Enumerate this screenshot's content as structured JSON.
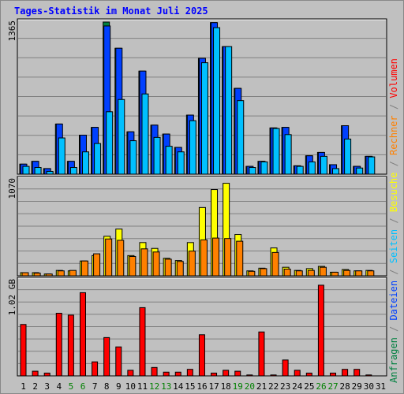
{
  "title": "Tages-Statistik im Monat Juli 2025",
  "right_legend": [
    {
      "text": "Anfragen",
      "color": "#008040"
    },
    {
      "text": " / ",
      "color": "#808080"
    },
    {
      "text": "Dateien",
      "color": "#0040ff"
    },
    {
      "text": " / ",
      "color": "#808080"
    },
    {
      "text": "Seiten",
      "color": "#00c0ff"
    },
    {
      "text": " / ",
      "color": "#808080"
    },
    {
      "text": "Besuche",
      "color": "#ffff00"
    },
    {
      "text": " / ",
      "color": "#808080"
    },
    {
      "text": "Rechner",
      "color": "#ff8000"
    },
    {
      "text": " / ",
      "color": "#808080"
    },
    {
      "text": "Volumen",
      "color": "#ff0000"
    }
  ],
  "chart_data": [
    {
      "type": "bar",
      "panel": "top",
      "ymax_label": "1365",
      "ylim": [
        0,
        1365
      ],
      "categories": [
        "1",
        "2",
        "3",
        "4",
        "5",
        "6",
        "7",
        "8",
        "9",
        "10",
        "11",
        "12",
        "13",
        "14",
        "15",
        "16",
        "17",
        "18",
        "19",
        "20",
        "21",
        "22",
        "23",
        "24",
        "25",
        "26",
        "27",
        "28",
        "29",
        "30",
        "31"
      ],
      "weekend_days": [
        5,
        6,
        12,
        13,
        19,
        20,
        26,
        27
      ],
      "series": [
        {
          "name": "Anfragen",
          "color": "#008040",
          "values": [
            90,
            115,
            50,
            450,
            115,
            350,
            420,
            1370,
            1130,
            380,
            925,
            440,
            360,
            240,
            530,
            1040,
            1360,
            1145,
            770,
            70,
            115,
            415,
            420,
            75,
            165,
            195,
            85,
            435,
            70,
            160,
            0
          ]
        },
        {
          "name": "Dateien",
          "color": "#0040ff",
          "values": [
            90,
            115,
            50,
            450,
            115,
            350,
            420,
            1330,
            1130,
            380,
            925,
            440,
            360,
            240,
            530,
            1040,
            1360,
            1145,
            770,
            70,
            115,
            415,
            420,
            75,
            165,
            195,
            85,
            435,
            70,
            160,
            0
          ]
        },
        {
          "name": "Seiten",
          "color": "#00c0ff",
          "values": [
            70,
            60,
            25,
            325,
            60,
            200,
            275,
            560,
            670,
            300,
            720,
            330,
            250,
            200,
            480,
            1000,
            1315,
            1145,
            660,
            60,
            110,
            410,
            355,
            70,
            110,
            160,
            50,
            315,
            55,
            155,
            0
          ]
        }
      ]
    },
    {
      "type": "bar",
      "panel": "middle",
      "ymax_label": "1070",
      "ylim": [
        0,
        1070
      ],
      "series": [
        {
          "name": "Besuche",
          "color": "#ffff00",
          "values": [
            35,
            35,
            20,
            60,
            55,
            165,
            225,
            440,
            520,
            225,
            370,
            305,
            195,
            170,
            370,
            760,
            960,
            1030,
            460,
            55,
            85,
            310,
            95,
            60,
            80,
            105,
            40,
            70,
            55,
            60,
            0
          ]
        },
        {
          "name": "Rechner",
          "color": "#ff8000",
          "values": [
            35,
            30,
            20,
            55,
            60,
            165,
            245,
            410,
            395,
            215,
            300,
            265,
            185,
            160,
            275,
            400,
            420,
            415,
            385,
            50,
            80,
            260,
            75,
            55,
            60,
            95,
            40,
            60,
            55,
            55,
            0
          ]
        }
      ]
    },
    {
      "type": "bar",
      "panel": "bottom",
      "ymax_label": "1.02 GB",
      "ylim": [
        0,
        1.02
      ],
      "series": [
        {
          "name": "Volumen",
          "color": "#ff0000",
          "unit": "GB",
          "values": [
            0.55,
            0.05,
            0.03,
            0.67,
            0.65,
            0.89,
            0.15,
            0.41,
            0.31,
            0.06,
            0.73,
            0.09,
            0.04,
            0.04,
            0.07,
            0.44,
            0.03,
            0.06,
            0.05,
            0.01,
            0.47,
            0.01,
            0.17,
            0.06,
            0.03,
            0.97,
            0.03,
            0.07,
            0.07,
            0.01,
            0.0
          ]
        }
      ]
    }
  ]
}
